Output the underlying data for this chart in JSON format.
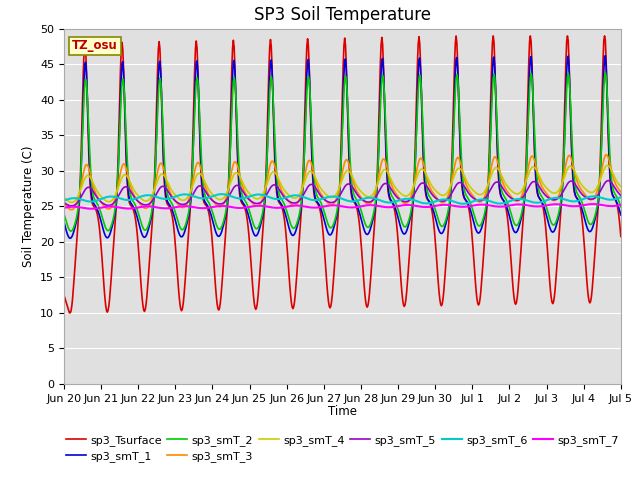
{
  "title": "SP3 Soil Temperature",
  "ylabel": "Soil Temperature (C)",
  "xlabel": "Time",
  "tz_label": "TZ_osu",
  "ylim": [
    0,
    50
  ],
  "background_color": "#ffffff",
  "plot_bg_color": "#e0e0e0",
  "series_order": [
    "sp3_Tsurface",
    "sp3_smT_1",
    "sp3_smT_2",
    "sp3_smT_3",
    "sp3_smT_4",
    "sp3_smT_5",
    "sp3_smT_6",
    "sp3_smT_7"
  ],
  "series": {
    "sp3_Tsurface": {
      "color": "#dd0000",
      "lw": 1.2
    },
    "sp3_smT_1": {
      "color": "#0000dd",
      "lw": 1.2
    },
    "sp3_smT_2": {
      "color": "#00cc00",
      "lw": 1.2
    },
    "sp3_smT_3": {
      "color": "#ff8800",
      "lw": 1.2
    },
    "sp3_smT_4": {
      "color": "#cccc00",
      "lw": 1.2
    },
    "sp3_smT_5": {
      "color": "#9900cc",
      "lw": 1.2
    },
    "sp3_smT_6": {
      "color": "#00cccc",
      "lw": 1.5
    },
    "sp3_smT_7": {
      "color": "#ff00ff",
      "lw": 1.5
    }
  },
  "legend_order": [
    "sp3_Tsurface",
    "sp3_smT_1",
    "sp3_smT_2",
    "sp3_smT_3",
    "sp3_smT_4",
    "sp3_smT_5",
    "sp3_smT_6",
    "sp3_smT_7"
  ],
  "xtick_labels": [
    "Jun 20",
    "Jun 21",
    "Jun 22",
    "Jun 23",
    "Jun 24",
    "Jun 25",
    "Jun 26",
    "Jun 27",
    "Jun 28",
    "Jun 29",
    "Jun 30",
    "Jul 1",
    "Jul 2",
    "Jul 3",
    "Jul 4",
    "Jul 5"
  ],
  "grid_color": "#ffffff",
  "title_fontsize": 12,
  "legend_fontsize": 8,
  "tick_fontsize": 8
}
